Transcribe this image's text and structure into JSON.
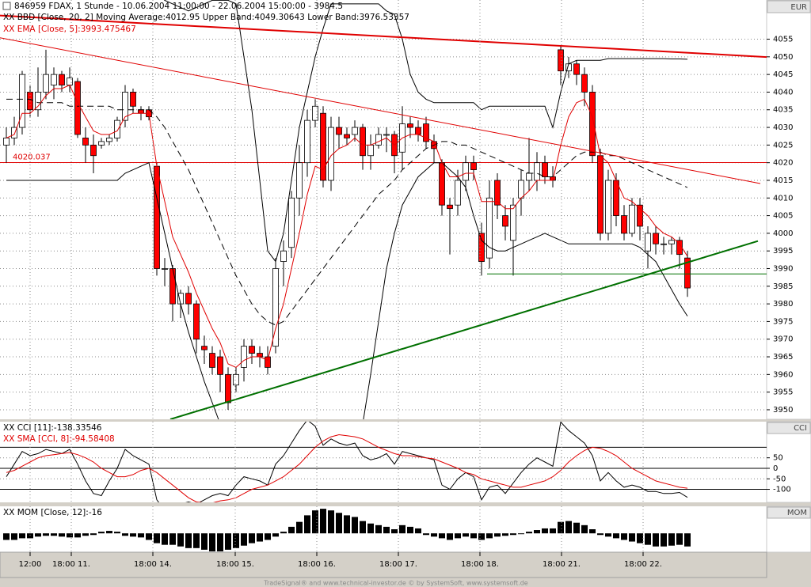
{
  "chart_data": [
    {
      "type": "candlestick",
      "title": "846959  FDAX, 1 Stunde - 10.06.2004 11:00:00 - 22.06.2004 15:00:00 - 3984.5",
      "unit": "EUR",
      "up_color": "#ffffff",
      "down_color": "#ff0000",
      "ylim": [
        3947.3,
        4066.1
      ],
      "yticks": [
        3950,
        3955,
        3960,
        3965,
        3970,
        3975,
        3980,
        3985,
        3990,
        3995,
        4000,
        4005,
        4010,
        4015,
        4020,
        4025,
        4030,
        4035,
        4040,
        4045,
        4050,
        4055
      ],
      "grid": true,
      "xticks": [
        {
          "value": 3,
          "label": "12:00"
        },
        {
          "value": 8.2,
          "label": "18:00 11."
        },
        {
          "value": 18.5,
          "label": "18:00 14."
        },
        {
          "value": 28.9,
          "label": "18:00 15."
        },
        {
          "value": 39.2,
          "label": "18:00 16."
        },
        {
          "value": 49.5,
          "label": "18:00 17."
        },
        {
          "value": 59.8,
          "label": "18:00 18."
        },
        {
          "value": 70.1,
          "label": "18:00 21."
        },
        {
          "value": 80.4,
          "label": "18:00 22."
        }
      ],
      "open": [
        4025,
        4027,
        4030,
        4040,
        4035,
        4040,
        4042,
        4045,
        4042,
        4043,
        4027,
        4025,
        4025,
        4026,
        4027,
        4032,
        4040,
        4035,
        4035,
        4019,
        3990,
        3990,
        3980,
        3983,
        3980,
        3968,
        3966,
        3965,
        3960,
        3957,
        3962,
        3968,
        3966,
        3965,
        3968,
        3992,
        3996,
        4010,
        4020,
        4032,
        4034,
        4015,
        4030,
        4028,
        4028,
        4030,
        4022,
        4025,
        4028,
        4028,
        4023,
        4031,
        4030,
        4031,
        4026,
        4020,
        4008,
        4008,
        4015,
        4020,
        4000,
        3993,
        4015,
        4005,
        3998,
        4010,
        4015,
        4015,
        4020,
        4016,
        4052,
        4046,
        4048,
        4045,
        4040,
        4022,
        4000,
        4015,
        4005,
        4000,
        4008,
        3995,
        4000,
        3997,
        3997,
        3998,
        3993
      ],
      "high": [
        4030,
        4033,
        4046,
        4042,
        4047,
        4052,
        4047,
        4046,
        4047,
        4044,
        4030,
        4028,
        4027,
        4028,
        4033,
        4042,
        4041,
        4036,
        4036,
        4020,
        3993,
        3991,
        3984,
        3985,
        3981,
        3971,
        3968,
        3967,
        3962,
        3962,
        3970,
        3970,
        3968,
        3968,
        3993,
        3998,
        4012,
        4025,
        4035,
        4038,
        4036,
        4033,
        4033,
        4030,
        4032,
        4031,
        4028,
        4030,
        4030,
        4029,
        4036,
        4033,
        4032,
        4033,
        4028,
        4021,
        4010,
        4018,
        4022,
        4022,
        4003,
        4015,
        4017,
        4008,
        4010,
        4018,
        4027,
        4023,
        4022,
        4019,
        4053,
        4050,
        4049,
        4047,
        4042,
        4024,
        4018,
        4017,
        4008,
        4010,
        4010,
        4002,
        4002,
        3999,
        3999,
        3999,
        3995
      ],
      "low": [
        4020,
        4025,
        4028,
        4033,
        4033,
        4038,
        4038,
        4040,
        4040,
        4027,
        4020,
        4017,
        4024,
        4025,
        4026,
        4030,
        4034,
        4032,
        4032,
        3988,
        3985,
        3975,
        3976,
        3977,
        3966,
        3963,
        3960,
        3955,
        3950,
        3955,
        3958,
        3963,
        3962,
        3960,
        3966,
        3985,
        3993,
        4005,
        4016,
        4030,
        4013,
        4012,
        4024,
        4025,
        4026,
        4018,
        4018,
        4024,
        4023,
        4017,
        4018,
        4027,
        4026,
        4024,
        4020,
        4005,
        3994,
        4005,
        4012,
        4015,
        3988,
        3990,
        4004,
        3998,
        3988,
        4005,
        4012,
        4012,
        4014,
        4013,
        4042,
        4044,
        4042,
        4036,
        4020,
        3998,
        3998,
        4002,
        3998,
        3999,
        3998,
        3990,
        3994,
        3994,
        3994,
        3990,
        3982
      ],
      "close": [
        4027,
        4030,
        4045,
        4035,
        4040,
        4045,
        4045,
        4042,
        4044,
        4028,
        4025,
        4022,
        4026,
        4027,
        4032,
        4040,
        4036,
        4034,
        4033,
        3990,
        3990,
        3980,
        3983,
        3980,
        3970,
        3967,
        3962,
        3960,
        3952,
        3960,
        3968,
        3966,
        3965,
        3962,
        3990,
        3995,
        4010,
        4020,
        4032,
        4036,
        4015,
        4030,
        4028,
        4027,
        4030,
        4022,
        4025,
        4028,
        4028,
        4022,
        4031,
        4030,
        4028,
        4026,
        4024,
        4008,
        4007,
        4015,
        4020,
        4018,
        3992,
        4010,
        4008,
        4002,
        4008,
        4015,
        4017,
        4020,
        4016,
        4015,
        4046,
        4048,
        4045,
        4040,
        4022,
        4000,
        4015,
        4005,
        4000,
        4008,
        4002,
        4000,
        3997,
        3997,
        3998,
        3994,
        3984.5
      ],
      "series": [
        {
          "name": "XX BBD [Close, 20, 2] Moving Average:4012.95 Upper Band:4049.30643 Lower Band:3976.53357",
          "color": "#000000",
          "dashed": true,
          "values": [
            4038,
            4038,
            4038,
            4038,
            4037,
            4037,
            4037,
            4037,
            4036,
            4036,
            4036,
            4036,
            4036,
            4036,
            4035,
            4035,
            4035,
            4035,
            4035,
            4033,
            4030,
            4026,
            4022,
            4018,
            4013,
            4008,
            4003,
            3998,
            3993,
            3988,
            3984,
            3980,
            3977,
            3975,
            3974,
            3975,
            3978,
            3981,
            3984,
            3987,
            3990,
            3993,
            3996,
            3999,
            4002,
            4005,
            4008,
            4011,
            4013,
            4015,
            4018,
            4020,
            4022,
            4024,
            4025,
            4026,
            4026,
            4025,
            4025,
            4024,
            4023,
            4022,
            4021,
            4020,
            4019,
            4018,
            4017,
            4017,
            4016,
            4016,
            4018,
            4020,
            4022,
            4023,
            4023,
            4023,
            4022,
            4022,
            4021,
            4020,
            4019,
            4018,
            4017,
            4016,
            4015,
            4014,
            4012.95
          ],
          "upper": [
            4070,
            4070,
            4070,
            4070,
            4070,
            4070,
            4070,
            4070,
            4070,
            4070,
            4070,
            4070,
            4070,
            4070,
            4070,
            4070,
            4068,
            4068,
            4068,
            4068,
            4066,
            4065,
            4064,
            4063,
            4064,
            4065,
            4066,
            4066,
            4066,
            4065,
            4050,
            4035,
            4015,
            3995,
            3992,
            4000,
            4015,
            4030,
            4040,
            4050,
            4058,
            4065,
            4065,
            4065,
            4065,
            4065,
            4065,
            4065,
            4063,
            4062,
            4055,
            4045,
            4040,
            4038,
            4037,
            4037,
            4037,
            4037,
            4037,
            4037,
            4035,
            4036,
            4036,
            4036,
            4036,
            4036,
            4036,
            4036,
            4036,
            4030,
            4040,
            4048,
            4049,
            4049,
            4049,
            4049,
            4049.5,
            4049.5,
            4049.5,
            4049.5,
            4049.5,
            4049.5,
            4049.5,
            4049.5,
            4049.4,
            4049.4,
            4049.30643
          ],
          "lower": [
            4015,
            4015,
            4015,
            4015,
            4015,
            4015,
            4015,
            4015,
            4015,
            4015,
            4015,
            4015,
            4015,
            4015,
            4015,
            4017,
            4018,
            4019,
            4020,
            4010,
            4000,
            3990,
            3980,
            3972,
            3965,
            3958,
            3952,
            3946,
            3940,
            3935,
            3935,
            3935,
            3935,
            3935,
            3935,
            3935,
            3935,
            3935,
            3935,
            3935,
            3935,
            3935,
            3935,
            3935,
            3935,
            3946,
            3960,
            3975,
            3990,
            4000,
            4008,
            4012,
            4016,
            4018,
            4020,
            4020,
            4018,
            4016,
            4013,
            4005,
            3998,
            3996,
            3995,
            3995,
            3996,
            3997,
            3998,
            3999,
            4000,
            3999,
            3998,
            3997,
            3997,
            3997,
            3997,
            3997,
            3997,
            3997,
            3997,
            3997,
            3996,
            3994,
            3992,
            3988,
            3984,
            3980,
            3976.53357
          ]
        },
        {
          "name": "XX EMA [Close, 5]:3993.475467",
          "color": "#e00000",
          "values": [
            4027,
            4028,
            4034,
            4034,
            4036,
            4039,
            4041,
            4041,
            4042,
            4037,
            4033,
            4029,
            4028,
            4028,
            4029,
            4033,
            4034,
            4034,
            4034,
            4019,
            4009,
            3999,
            3994,
            3989,
            3983,
            3978,
            3973,
            3969,
            3963,
            3962,
            3964,
            3965,
            3965,
            3964,
            3973,
            3980,
            3990,
            4000,
            4011,
            4019,
            4018,
            4022,
            4024,
            4025,
            4027,
            4025,
            4025,
            4026,
            4027,
            4025,
            4027,
            4028,
            4028,
            4027,
            4026,
            4020,
            4016,
            4016,
            4017,
            4017,
            4009,
            4009,
            4009,
            4007,
            4007,
            4010,
            4012,
            4015,
            4015,
            4015,
            4025,
            4033,
            4037,
            4038,
            4033,
            4022,
            4020,
            4015,
            4010,
            4009,
            4007,
            4005,
            4002,
            4000,
            3999,
            3997,
            3993.475467
          ]
        }
      ],
      "hlines": [
        {
          "value": 4020.037,
          "color": "#e00000"
        }
      ],
      "trendlines": [
        {
          "x": [
            -0.8,
            97.2
          ],
          "y": [
            4061.7,
            4049.8
          ],
          "color": "#e00000",
          "width": 2
        },
        {
          "x": [
            -0.8,
            95.2
          ],
          "y": [
            4055.4,
            4014.1
          ],
          "color": "#e00000",
          "width": 1
        },
        {
          "x": [
            20.7,
            94.9
          ],
          "y": [
            3947.3,
            3997.8
          ],
          "color": "#007000",
          "width": 2
        },
        {
          "x": [
            60.7,
            96.0
          ],
          "y": [
            3988.5,
            3988.5
          ],
          "color": "#007000",
          "width": 1
        }
      ]
    },
    {
      "type": "line",
      "panel_label": "CCI",
      "ylim": [
        -162,
        222
      ],
      "yticks": [
        50,
        0,
        -50,
        -100
      ],
      "grid": true,
      "levels": [
        100,
        0,
        -100
      ],
      "series": [
        {
          "name": "XX CCI [11]:-138.33546",
          "color": "#000000",
          "values": [
            -40,
            20,
            80,
            60,
            70,
            90,
            80,
            70,
            90,
            20,
            -60,
            -120,
            -130,
            -60,
            0,
            90,
            60,
            40,
            20,
            -150,
            -200,
            -180,
            -170,
            -160,
            -170,
            -150,
            -130,
            -120,
            -130,
            -80,
            -40,
            -50,
            -60,
            -80,
            20,
            60,
            120,
            180,
            230,
            200,
            110,
            140,
            120,
            110,
            120,
            60,
            40,
            50,
            70,
            20,
            80,
            70,
            60,
            50,
            40,
            -80,
            -100,
            -50,
            -20,
            -40,
            -150,
            -90,
            -80,
            -120,
            -70,
            -20,
            20,
            50,
            30,
            10,
            220,
            180,
            150,
            120,
            60,
            -60,
            -20,
            -60,
            -90,
            -80,
            -90,
            -110,
            -110,
            -120,
            -120,
            -115,
            -138.33546
          ]
        },
        {
          "name": "XX SMA [CCI, 8]:-94.58408",
          "color": "#e00000",
          "values": [
            -20,
            -10,
            10,
            30,
            50,
            60,
            65,
            70,
            75,
            65,
            50,
            30,
            0,
            -20,
            -40,
            -40,
            -30,
            -10,
            0,
            -20,
            -50,
            -80,
            -110,
            -140,
            -160,
            -165,
            -165,
            -155,
            -150,
            -140,
            -120,
            -100,
            -90,
            -80,
            -60,
            -40,
            -10,
            20,
            60,
            100,
            130,
            150,
            160,
            155,
            150,
            140,
            120,
            100,
            85,
            70,
            60,
            60,
            55,
            50,
            45,
            30,
            15,
            0,
            -20,
            -30,
            -50,
            -60,
            -70,
            -80,
            -90,
            -90,
            -80,
            -70,
            -60,
            -40,
            -10,
            30,
            60,
            85,
            100,
            95,
            80,
            60,
            30,
            0,
            -20,
            -40,
            -60,
            -70,
            -80,
            -90,
            -94.58408
          ]
        }
      ]
    },
    {
      "type": "bar",
      "panel_label": "MOM",
      "title": "XX MOM [Close, 12]:-16",
      "color": "#000000",
      "ylim": [
        -23,
        33
      ],
      "values": [
        -8,
        -8,
        -6,
        -6,
        -4,
        -3,
        -3,
        -4,
        -5,
        -5,
        -3,
        -2,
        2,
        3,
        2,
        -3,
        -4,
        -5,
        -8,
        -12,
        -14,
        -14,
        -16,
        -18,
        -18,
        -20,
        -22,
        -22,
        -20,
        -18,
        -15,
        -12,
        -10,
        -8,
        -4,
        2,
        8,
        14,
        22,
        28,
        30,
        28,
        25,
        22,
        20,
        15,
        12,
        10,
        8,
        5,
        10,
        8,
        6,
        -2,
        -4,
        -6,
        -8,
        -6,
        -4,
        -6,
        -8,
        -6,
        -4,
        -3,
        -2,
        -1,
        2,
        4,
        6,
        6,
        14,
        15,
        13,
        10,
        5,
        -2,
        -4,
        -6,
        -8,
        -10,
        -12,
        -14,
        -16,
        -16,
        -15,
        -14,
        -16
      ]
    }
  ],
  "footer": "TradeSignal® and www.technical-investor.de © by SystemSoft, www.systemsoft.de"
}
